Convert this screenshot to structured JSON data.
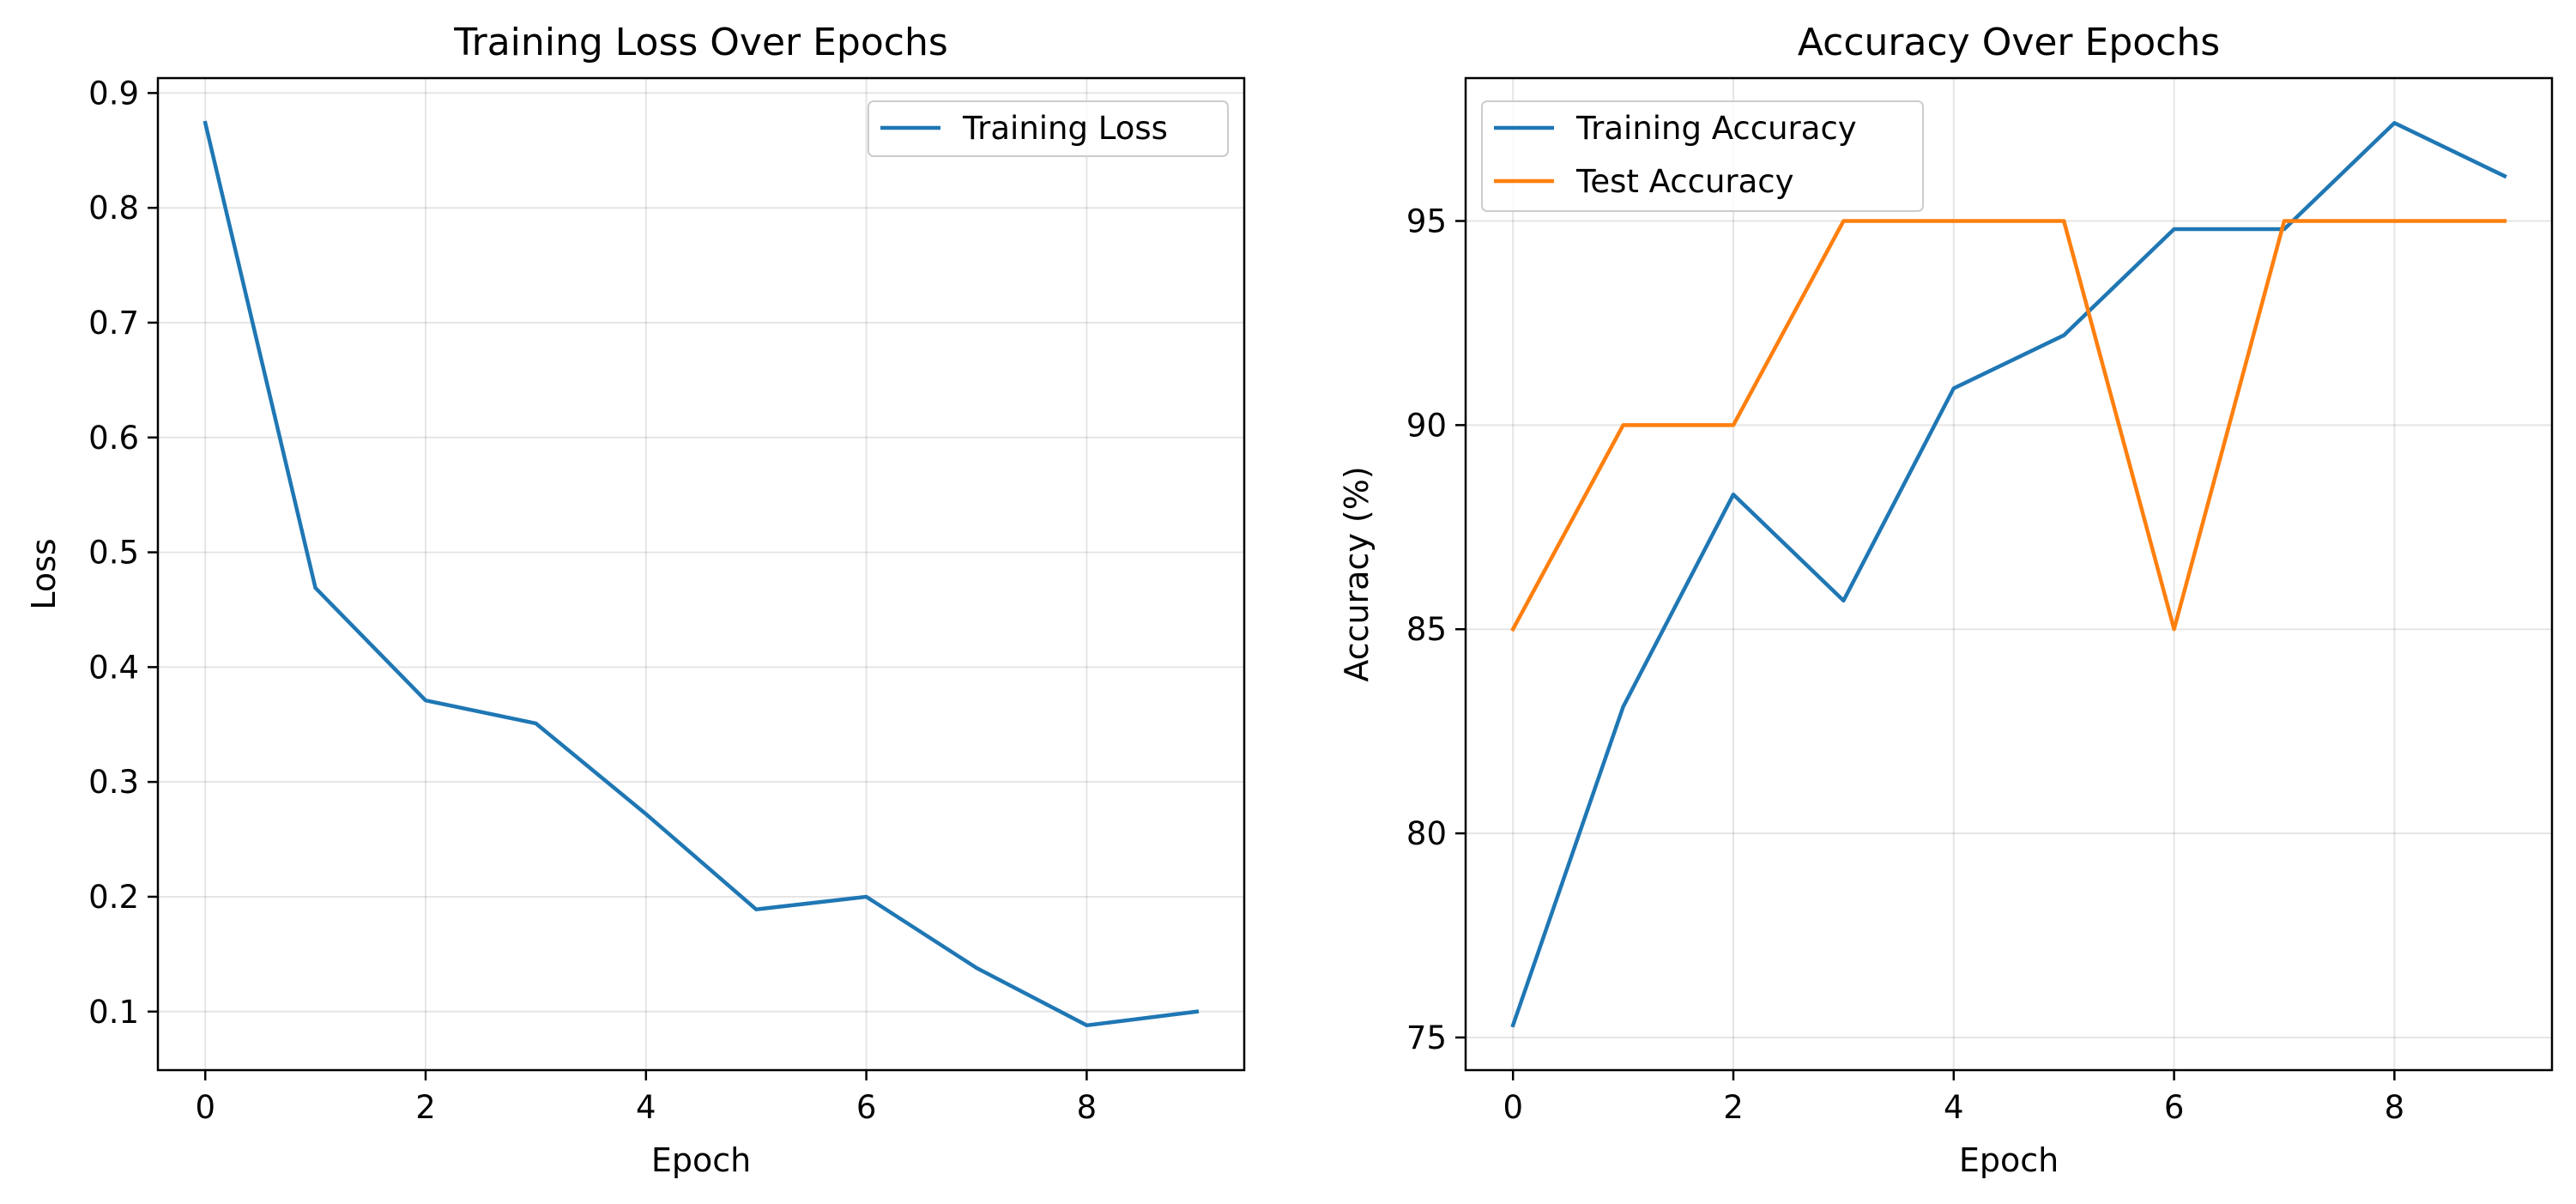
{
  "chart_data": [
    {
      "type": "line",
      "title": "Training Loss Over Epochs",
      "xlabel": "Epoch",
      "ylabel": "Loss",
      "x": [
        0,
        1,
        2,
        3,
        4,
        5,
        6,
        7,
        8,
        9
      ],
      "xlim": [
        -0.43,
        9.43
      ],
      "ylim": [
        0.049,
        0.913
      ],
      "xticks": [
        0,
        2,
        4,
        6,
        8
      ],
      "yticks": [
        0.1,
        0.2,
        0.3,
        0.4,
        0.5,
        0.6,
        0.7,
        0.8,
        0.9
      ],
      "grid": true,
      "legend": "top-right",
      "series": [
        {
          "name": "Training Loss",
          "color": "#1f77b4",
          "values": [
            0.874,
            0.469,
            0.371,
            0.351,
            0.272,
            0.189,
            0.2,
            0.138,
            0.088,
            0.1
          ]
        }
      ]
    },
    {
      "type": "line",
      "title": "Accuracy Over Epochs",
      "xlabel": "Epoch",
      "ylabel": "Accuracy (%)",
      "x": [
        0,
        1,
        2,
        3,
        4,
        5,
        6,
        7,
        8,
        9
      ],
      "xlim": [
        -0.43,
        9.43
      ],
      "ylim": [
        74.2,
        98.5
      ],
      "xticks": [
        0,
        2,
        4,
        6,
        8
      ],
      "yticks": [
        75,
        80,
        85,
        90,
        95
      ],
      "grid": true,
      "legend": "top-left",
      "series": [
        {
          "name": "Training Accuracy",
          "color": "#1f77b4",
          "values": [
            75.3,
            83.1,
            88.3,
            85.7,
            90.9,
            92.2,
            94.8,
            94.8,
            97.4,
            96.1
          ]
        },
        {
          "name": "Test Accuracy",
          "color": "#ff7f0e",
          "values": [
            85.0,
            90.0,
            90.0,
            95.0,
            95.0,
            95.0,
            85.0,
            95.0,
            95.0,
            95.0
          ]
        }
      ]
    }
  ]
}
